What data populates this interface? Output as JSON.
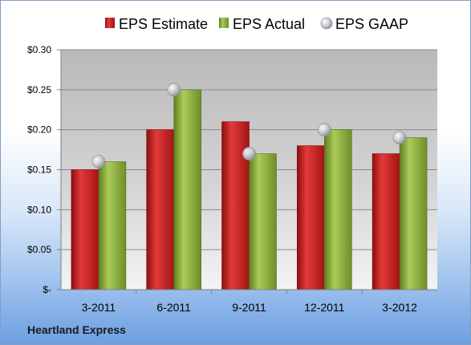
{
  "footer": {
    "company": "Heartland Express"
  },
  "colors": {
    "estimate": "#cc1f1f",
    "actual": "#8fb339",
    "gaap": "#c9ccd2"
  },
  "chart_data": {
    "type": "bar",
    "categories": [
      "3-2011",
      "6-2011",
      "9-2011",
      "12-2011",
      "3-2012"
    ],
    "series": [
      {
        "name": "EPS Estimate",
        "type": "bar",
        "values": [
          0.15,
          0.2,
          0.21,
          0.18,
          0.17
        ]
      },
      {
        "name": "EPS Actual",
        "type": "bar",
        "values": [
          0.16,
          0.25,
          0.17,
          0.2,
          0.19
        ]
      },
      {
        "name": "EPS GAAP",
        "type": "marker",
        "values": [
          0.16,
          0.25,
          0.17,
          0.2,
          0.19
        ]
      }
    ],
    "y_ticks": [
      "$-",
      "$0.05",
      "$0.10",
      "$0.15",
      "$0.20",
      "$0.25",
      "$0.30"
    ],
    "ylim": [
      0,
      0.3
    ],
    "grid": true,
    "legend": "top"
  }
}
